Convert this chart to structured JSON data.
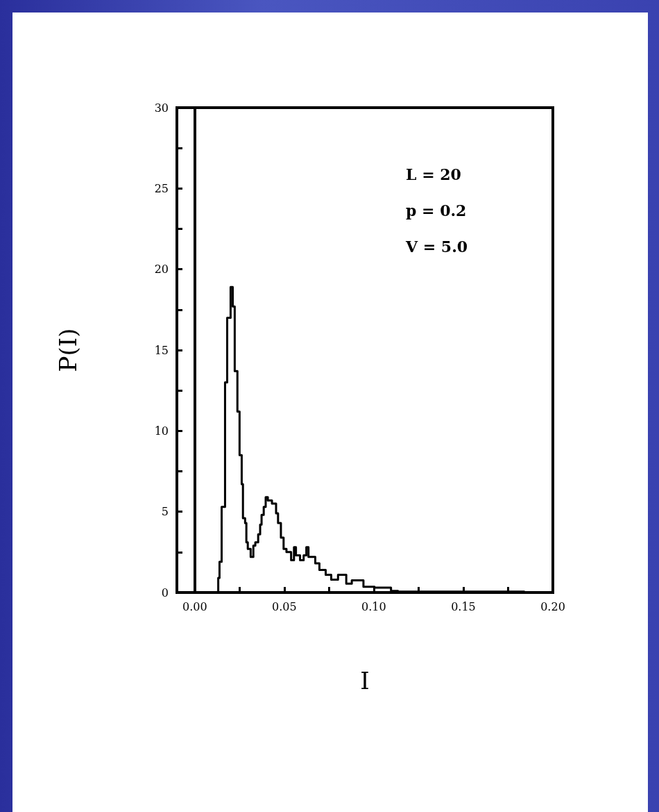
{
  "chart_data": {
    "type": "step",
    "xlabel": "I",
    "ylabel": "P(I)",
    "annotations": [
      "L = 20",
      "p = 0.2",
      "V = 5.0"
    ],
    "series": [
      {
        "color": "#000000",
        "x": [
          0.0,
          0.0131,
          0.0138,
          0.015,
          0.0169,
          0.0181,
          0.02,
          0.0212,
          0.0223,
          0.0238,
          0.025,
          0.0262,
          0.0269,
          0.0281,
          0.0288,
          0.0296,
          0.0312,
          0.0327,
          0.0338,
          0.0354,
          0.0365,
          0.0373,
          0.0385,
          0.0396,
          0.0408,
          0.0431,
          0.0454,
          0.0465,
          0.0481,
          0.0496,
          0.0512,
          0.0538,
          0.0554,
          0.0565,
          0.0588,
          0.0608,
          0.0623,
          0.0635,
          0.0673,
          0.0696,
          0.0731,
          0.0762,
          0.08,
          0.0846,
          0.0877,
          0.0942,
          0.1004,
          0.1096,
          0.1135,
          0.176,
          0.184
        ],
        "values": [
          0,
          0.9,
          1.9,
          5.3,
          13.0,
          17.0,
          18.9,
          17.7,
          13.7,
          11.2,
          8.5,
          6.7,
          4.6,
          4.3,
          3.1,
          2.7,
          2.2,
          2.9,
          3.1,
          3.6,
          4.2,
          4.8,
          5.3,
          5.9,
          5.7,
          5.5,
          4.9,
          4.3,
          3.4,
          2.7,
          2.5,
          2.0,
          2.8,
          2.3,
          2.0,
          2.3,
          2.8,
          2.2,
          1.8,
          1.4,
          1.1,
          0.8,
          1.1,
          0.55,
          0.75,
          0.35,
          0.3,
          0.1,
          0.05,
          0.05,
          0
        ]
      }
    ],
    "xlim": [
      -0.01,
      0.2
    ],
    "xticks": [
      {
        "value": 0.0,
        "label": "0.00"
      },
      {
        "value": 0.025,
        "label": null
      },
      0.05,
      {
        "value": 0.075,
        "label": null
      },
      {
        "value": 0.1,
        "label": "0.10"
      },
      {
        "value": 0.125,
        "label": null
      },
      0.15,
      {
        "value": 0.175,
        "label": null
      },
      {
        "value": 0.2,
        "label": "0.20"
      }
    ],
    "ylim": [
      0,
      30
    ],
    "yticks": [
      0,
      {
        "value": 2.5,
        "label": null
      },
      5,
      {
        "value": 7.5,
        "label": null
      },
      10,
      {
        "value": 12.5,
        "label": null
      },
      15,
      {
        "value": 17.5,
        "label": null
      },
      20,
      {
        "value": 22.5,
        "label": null
      },
      25,
      {
        "value": 27.5,
        "label": null
      },
      30
    ],
    "ref_lines": [
      {
        "axis": "x",
        "value": 0.0,
        "label": null,
        "color": "#000000"
      }
    ],
    "grid": false,
    "marker": "none",
    "line_style": "solid"
  }
}
